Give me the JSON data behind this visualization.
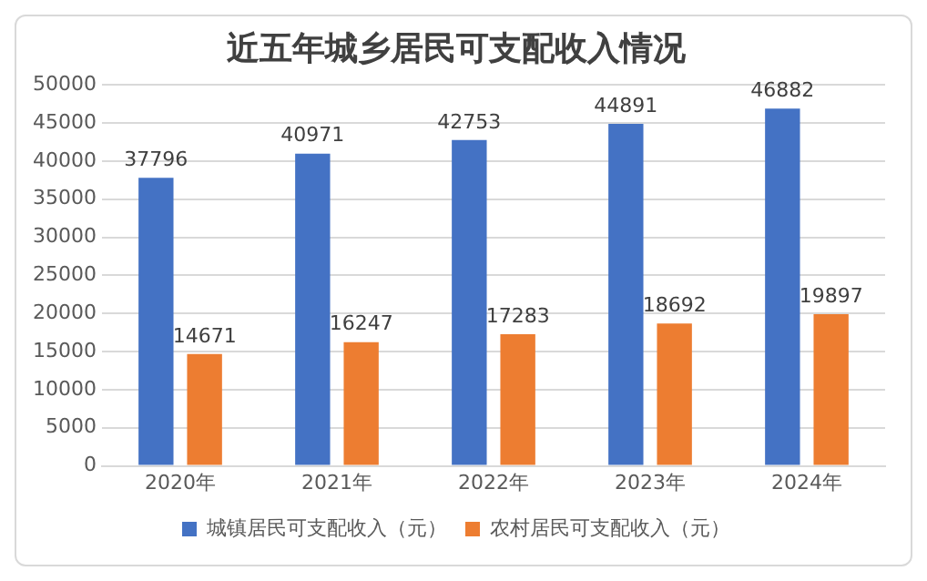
{
  "chart_data": {
    "type": "bar",
    "title": "近五年城乡居民可支配收入情况",
    "categories": [
      "2020年",
      "2021年",
      "2022年",
      "2023年",
      "2024年"
    ],
    "series": [
      {
        "name": "城镇居民可支配收入（元）",
        "color": "#4472c4",
        "values": [
          37796,
          40971,
          42753,
          44891,
          46882
        ]
      },
      {
        "name": "农村居民可支配收入（元）",
        "color": "#ed7d31",
        "values": [
          14671,
          16247,
          17283,
          18692,
          19897
        ]
      }
    ],
    "ylim": [
      0,
      50000
    ],
    "yticks": [
      0,
      5000,
      10000,
      15000,
      20000,
      25000,
      30000,
      35000,
      40000,
      45000,
      50000
    ],
    "grid": "y",
    "legend": "bottom",
    "data_labels": true
  }
}
